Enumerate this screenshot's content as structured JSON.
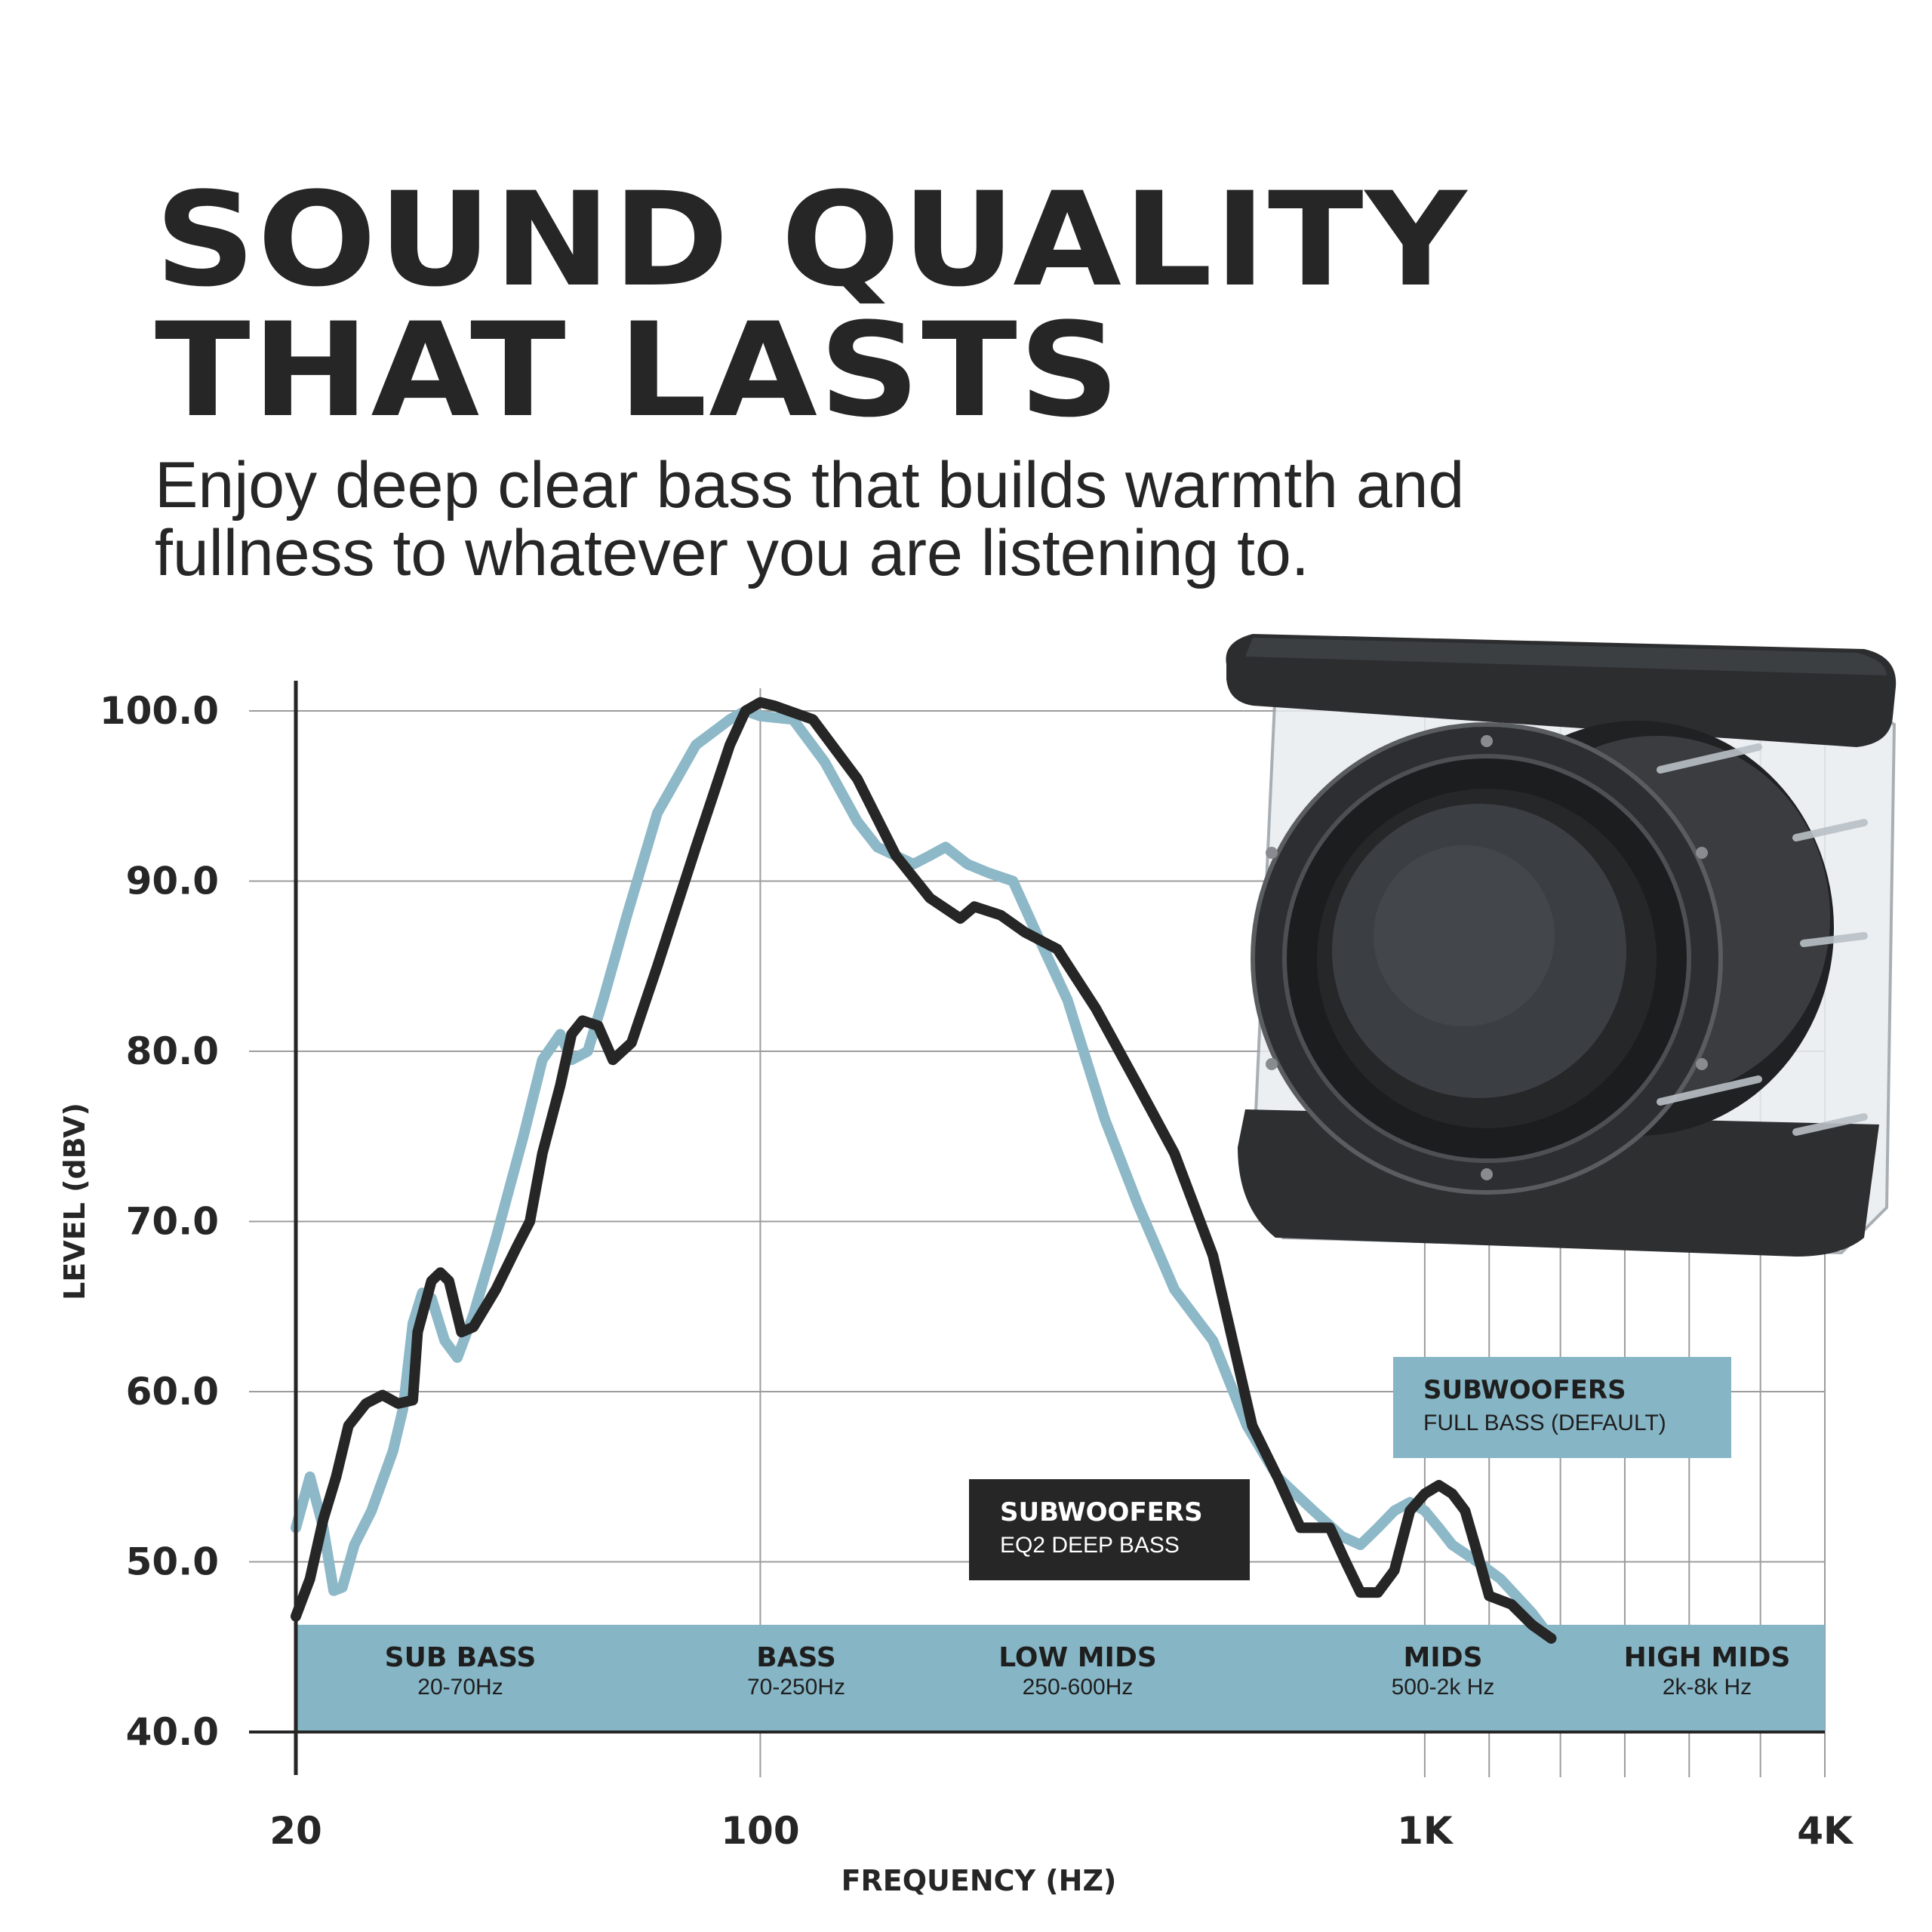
{
  "header": {
    "title_line1": "SOUND QUALITY",
    "title_line2": "THAT LASTS",
    "subtitle_line1": "Enjoy deep clear bass that builds warmth and",
    "subtitle_line2": "fullness to whatever you are listening to."
  },
  "chart_data": {
    "type": "line",
    "xlabel": "FREQUENCY (HZ)",
    "ylabel": "LEVEL (dBV)",
    "x_scale": "log",
    "xlim": [
      20,
      4000
    ],
    "ylim": [
      40,
      100
    ],
    "x_ticks": [
      {
        "value": 20,
        "label": "20"
      },
      {
        "value": 100,
        "label": "100"
      },
      {
        "value": 1000,
        "label": "1K"
      },
      {
        "value": 4000,
        "label": "4K"
      }
    ],
    "y_ticks": [
      {
        "value": 100,
        "label": "100.0"
      },
      {
        "value": 90,
        "label": "90.0"
      },
      {
        "value": 80,
        "label": "80.0"
      },
      {
        "value": 70,
        "label": "70.0"
      },
      {
        "value": 60,
        "label": "60.0"
      },
      {
        "value": 50,
        "label": "50.0"
      },
      {
        "value": 40,
        "label": "40.0"
      }
    ],
    "grid": true,
    "series": [
      {
        "name": "SUBWOOFERS FULL BASS (DEFAULT)",
        "label_title": "SUBWOOFERS",
        "label_sub": "FULL BASS (DEFAULT)",
        "color": "#8db8c8",
        "points": [
          [
            20,
            52
          ],
          [
            21,
            55
          ],
          [
            22,
            52
          ],
          [
            22.8,
            48.3
          ],
          [
            23.5,
            48.5
          ],
          [
            24.5,
            51
          ],
          [
            26,
            53
          ],
          [
            28,
            56.5
          ],
          [
            29,
            59
          ],
          [
            30,
            64
          ],
          [
            31,
            65.8
          ],
          [
            32,
            65.5
          ],
          [
            33.5,
            63
          ],
          [
            35,
            62
          ],
          [
            37,
            64.5
          ],
          [
            40,
            69
          ],
          [
            44,
            75
          ],
          [
            47,
            79.5
          ],
          [
            50,
            81
          ],
          [
            52,
            79.5
          ],
          [
            55,
            80
          ],
          [
            58,
            83
          ],
          [
            63,
            88
          ],
          [
            70,
            94
          ],
          [
            80,
            98
          ],
          [
            90,
            99.5
          ],
          [
            95,
            100
          ],
          [
            100,
            99.7
          ],
          [
            112,
            99.5
          ],
          [
            125,
            97
          ],
          [
            140,
            93.5
          ],
          [
            150,
            92
          ],
          [
            170,
            91
          ],
          [
            180,
            91.5
          ],
          [
            190,
            92
          ],
          [
            205,
            91
          ],
          [
            220,
            90.5
          ],
          [
            240,
            90
          ],
          [
            260,
            87
          ],
          [
            290,
            83
          ],
          [
            330,
            76
          ],
          [
            370,
            71
          ],
          [
            420,
            66
          ],
          [
            480,
            63
          ],
          [
            540,
            58
          ],
          [
            600,
            55
          ],
          [
            680,
            53
          ],
          [
            750,
            51.5
          ],
          [
            800,
            51
          ],
          [
            850,
            52
          ],
          [
            900,
            53
          ],
          [
            950,
            53.5
          ],
          [
            1000,
            53
          ],
          [
            1050,
            52
          ],
          [
            1100,
            51
          ],
          [
            1200,
            50
          ],
          [
            1300,
            49
          ],
          [
            1450,
            47
          ],
          [
            1550,
            45.5
          ]
        ]
      },
      {
        "name": "SUBWOOFERS EQ2 DEEP BASS",
        "label_title": "SUBWOOFERS",
        "label_sub": "EQ2 DEEP BASS",
        "color": "#262626",
        "points": [
          [
            20,
            46.8
          ],
          [
            21,
            49
          ],
          [
            22,
            52.5
          ],
          [
            23,
            55
          ],
          [
            24,
            58
          ],
          [
            25.5,
            59.3
          ],
          [
            27,
            59.8
          ],
          [
            28.5,
            59.3
          ],
          [
            30,
            59.5
          ],
          [
            30.5,
            63.5
          ],
          [
            32,
            66.5
          ],
          [
            33,
            67
          ],
          [
            34,
            66.5
          ],
          [
            35.5,
            63.5
          ],
          [
            37,
            63.8
          ],
          [
            40,
            66
          ],
          [
            43,
            68.5
          ],
          [
            45,
            70
          ],
          [
            47,
            74
          ],
          [
            50,
            78
          ],
          [
            52,
            81
          ],
          [
            54,
            81.8
          ],
          [
            57,
            81.5
          ],
          [
            60,
            79.5
          ],
          [
            64,
            80.5
          ],
          [
            70,
            85
          ],
          [
            80,
            92
          ],
          [
            90,
            98
          ],
          [
            95,
            100
          ],
          [
            100,
            100.5
          ],
          [
            105,
            100.3
          ],
          [
            120,
            99.5
          ],
          [
            140,
            96
          ],
          [
            160,
            91.5
          ],
          [
            180,
            89
          ],
          [
            200,
            87.8
          ],
          [
            210,
            88.5
          ],
          [
            230,
            88
          ],
          [
            250,
            87
          ],
          [
            280,
            86
          ],
          [
            320,
            82.5
          ],
          [
            370,
            78
          ],
          [
            420,
            74
          ],
          [
            480,
            68
          ],
          [
            550,
            58
          ],
          [
            600,
            55
          ],
          [
            650,
            52
          ],
          [
            720,
            52
          ],
          [
            760,
            50
          ],
          [
            800,
            48.2
          ],
          [
            850,
            48.2
          ],
          [
            900,
            49.5
          ],
          [
            950,
            53
          ],
          [
            1000,
            54
          ],
          [
            1050,
            54.5
          ],
          [
            1100,
            54
          ],
          [
            1150,
            53
          ],
          [
            1200,
            50.5
          ],
          [
            1250,
            48
          ],
          [
            1350,
            47.5
          ],
          [
            1450,
            46.3
          ],
          [
            1550,
            45.5
          ]
        ]
      }
    ],
    "bands": [
      {
        "name": "SUB BASS",
        "range": "20-70Hz"
      },
      {
        "name": "BASS",
        "range": "70-250Hz"
      },
      {
        "name": "LOW MIDS",
        "range": "250-600Hz"
      },
      {
        "name": "MIDS",
        "range": "500-2k Hz"
      },
      {
        "name": "HIGH MIDS",
        "range": "2k-8k Hz"
      }
    ],
    "band_color": "#86b5c5"
  }
}
